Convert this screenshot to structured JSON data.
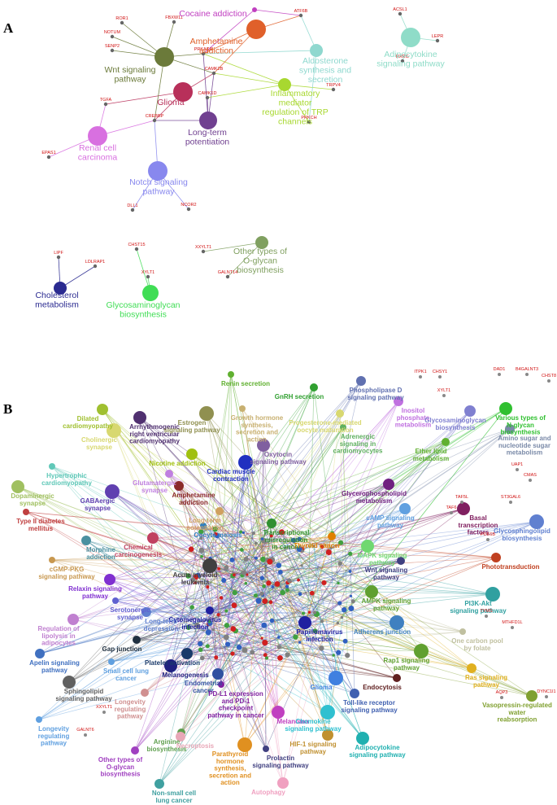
{
  "panel_a": {
    "label": "A",
    "pathways": [
      {
        "label": "Cocaine addiction",
        "color": "#c03fc0"
      },
      {
        "label": "Amphetamine\naddiction",
        "color": "#e0602a"
      },
      {
        "label": "Wnt signaling\npathway",
        "color": "#6b7a3a"
      },
      {
        "label": "Aldosterone\nsynthesis and\nsecretion",
        "color": "#8fd8cf"
      },
      {
        "label": "Adipocytokine\nsignaling pathway",
        "color": "#8fdcc8"
      },
      {
        "label": "Glioma",
        "color": "#b8305a"
      },
      {
        "label": "Inflammatory\nmediator\nregulation of TRP\nchannels",
        "color": "#a8d830"
      },
      {
        "label": "Long-term\npotentiation",
        "color": "#704090"
      },
      {
        "label": "Renal cell\ncarcinoma",
        "color": "#d870e0"
      },
      {
        "label": "Notch signaling\npathway",
        "color": "#8888ee"
      },
      {
        "label": "Cholesterol\nmetabolism",
        "color": "#2a2a90"
      },
      {
        "label": "Glycosaminoglycan\nbiosynthesis",
        "color": "#40dd55"
      },
      {
        "label": "Other types of\nO-glycan\nbiosynthesis",
        "color": "#80a060"
      }
    ],
    "genes": [
      "ROR1",
      "FBXW11",
      "NOTUM",
      "SENP2",
      "ATF6B",
      "ACSL1",
      "LEPR",
      "RXRG",
      "PRKACA",
      "CAMK2B",
      "CAMK1D",
      "TRPV4",
      "PRKCH",
      "TGFA",
      "CREBBP",
      "EPAS1",
      "DLL1",
      "NCOR2",
      "LIPF",
      "LDLRAP1",
      "CHST15",
      "XYLT1",
      "XXYLT1",
      "GALNT14"
    ]
  },
  "panel_b": {
    "label": "B",
    "pathways": [
      {
        "label": "Renin secretion",
        "color": "#60b030"
      },
      {
        "label": "GnRH secretion",
        "color": "#30a030"
      },
      {
        "label": "Phospholipase D\nsignaling pathway",
        "color": "#6070b0"
      },
      {
        "label": "Dilated\ncardiomyopathy",
        "color": "#a0c030"
      },
      {
        "label": "Arrhythmogenic\nright ventricular\ncardiomyopathy",
        "color": "#503070"
      },
      {
        "label": "Estrogen\nsignaling pathway",
        "color": "#909050"
      },
      {
        "label": "Growth hormone\nsynthesis,\nsecretion and\naction",
        "color": "#c8b070"
      },
      {
        "label": "Progesterone-mediated\noocyte maturation",
        "color": "#d8d870"
      },
      {
        "label": "Inositol\nphosphate\nmetabolism",
        "color": "#c070e0"
      },
      {
        "label": "Glycosaminoglycan\nbiosynthesis",
        "color": "#8080d0"
      },
      {
        "label": "Various types of\nN-glycan\nbiosynthesis",
        "color": "#30c030"
      },
      {
        "label": "Cholinergic\nsynapse",
        "color": "#d8d870"
      },
      {
        "label": "Adrenergic\nsignaling in\ncardiomyocytes",
        "color": "#60b060"
      },
      {
        "label": "Ether lipid\nmetabolism",
        "color": "#60b030"
      },
      {
        "label": "Amino sugar and\nnucleotide sugar\nmetabolism",
        "color": "#7a8aa8"
      },
      {
        "label": "Nicotine addiction",
        "color": "#a0c010"
      },
      {
        "label": "Oxytocin\nsignaling pathway",
        "color": "#8060a0"
      },
      {
        "label": "Cardiac muscle\ncontraction",
        "color": "#2030c0"
      },
      {
        "label": "Hypertrophic\ncardiomyopathy",
        "color": "#60c8b8"
      },
      {
        "label": "Glutamatergic\nsynapse",
        "color": "#c080e0"
      },
      {
        "label": "Amphetamine\naddiction",
        "color": "#8a2a2a"
      },
      {
        "label": "Glycerophospholipid\nmetabolism",
        "color": "#702080"
      },
      {
        "label": "Dopaminergic\nsynapse",
        "color": "#a0c060"
      },
      {
        "label": "GABAergic\nsynapse",
        "color": "#6040b0"
      },
      {
        "label": "Type II diabetes\nmellitus",
        "color": "#c04040"
      },
      {
        "label": "Long-term\npotentiation",
        "color": "#d0a060"
      },
      {
        "label": "Transcriptional\nmisregulation\nin cancer",
        "color": "#309030"
      },
      {
        "label": "cAMP signaling\npathway",
        "color": "#60a0e0"
      },
      {
        "label": "Basal\ntranscription\nfactors",
        "color": "#802060"
      },
      {
        "label": "Glycosphingolipid\nbiosynthesis",
        "color": "#6080d0"
      },
      {
        "label": "Oocyte meiosis",
        "color": "#3080c0"
      },
      {
        "label": "Thyroid cancer",
        "color": "#e08000"
      },
      {
        "label": "Morphine\naddiction",
        "color": "#4a90a0"
      },
      {
        "label": "Chemical\ncarcinogenesis",
        "color": "#c04060"
      },
      {
        "label": "MAPK signaling\npathway",
        "color": "#70d870"
      },
      {
        "label": "Acute myeloid\nleukemia",
        "color": "#404040"
      },
      {
        "label": "cGMP-PKG\nsignaling pathway",
        "color": "#c89850"
      },
      {
        "label": "Wnt signaling\npathway",
        "color": "#404080"
      },
      {
        "label": "Phototransduction",
        "color": "#c04020"
      },
      {
        "label": "Relaxin signaling\npathway",
        "color": "#8030d0"
      },
      {
        "label": "AMPK signaling\npathway",
        "color": "#60a030"
      },
      {
        "label": "PI3K-Akt\nsignaling pathway",
        "color": "#30a0a0"
      },
      {
        "label": "Serotonergic\nsynapse",
        "color": "#6060d0"
      },
      {
        "label": "Cytomegalovirus\ninfection",
        "color": "#2020a0"
      },
      {
        "label": "Long-term\ndepression",
        "color": "#6080d0"
      },
      {
        "label": "Regulation of\nlipolysis in\nadipocytes",
        "color": "#c080d0"
      },
      {
        "label": "Papillomavirus\ninfection",
        "color": "#2020a0"
      },
      {
        "label": "Adherens junction",
        "color": "#4080c0"
      },
      {
        "label": "One carbon pool\nby folate",
        "color": "#c0c0a0"
      },
      {
        "label": "Gap junction",
        "color": "#203040"
      },
      {
        "label": "Apelin signaling\npathway",
        "color": "#4070c0"
      },
      {
        "label": "Platelet activation",
        "color": "#1a3a6a"
      },
      {
        "label": "Melanogenesis",
        "color": "#202080"
      },
      {
        "label": "Rap1 signaling\npathway",
        "color": "#60a030"
      },
      {
        "label": "Small cell lung\ncancer",
        "color": "#60a0e0"
      },
      {
        "label": "Endocytosis",
        "color": "#602020"
      },
      {
        "label": "Ras signaling\npathway",
        "color": "#e0b020"
      },
      {
        "label": "Endometrial\ncancer",
        "color": "#3050a0"
      },
      {
        "label": "Sphingolipid\nsignaling pathway",
        "color": "#606060"
      },
      {
        "label": "Glioma",
        "color": "#4080e0"
      },
      {
        "label": "PD-L1 expression\nand PD-1\ncheckpoint\npathway in cancer",
        "color": "#8020a0"
      },
      {
        "label": "Longevity\nregulating\npathway",
        "color": "#d09090"
      },
      {
        "label": "Toll-like receptor\nsignaling pathway",
        "color": "#4060b0"
      },
      {
        "label": "Vasopressin-regulated\nwater\nreabsorption",
        "color": "#80a030"
      },
      {
        "label": "Melanoma",
        "color": "#c040c0"
      },
      {
        "label": "Chemokine\nsignaling pathway",
        "color": "#30c0d0"
      },
      {
        "label": "Longevity\nregulating\npathway",
        "color": "#60a0e0"
      },
      {
        "label": "Arginine\nbiosynthesis",
        "color": "#60a050"
      },
      {
        "label": "Necroptosis",
        "color": "#e8a8b8"
      },
      {
        "label": "HIF-1 signaling\npathway",
        "color": "#c09030"
      },
      {
        "label": "Adipocytokine\nsignaling pathway",
        "color": "#20b0b0"
      },
      {
        "label": "Parathyroid\nhormone\nsynthesis,\nsecretion and\naction",
        "color": "#e09020"
      },
      {
        "label": "Prolactin\nsignaling pathway",
        "color": "#404080"
      },
      {
        "label": "Other types of\nO-glycan\nbiosynthesis",
        "color": "#a040c0"
      },
      {
        "label": "Non-small cell\nlung cancer",
        "color": "#40a0a0"
      },
      {
        "label": "Autophagy",
        "color": "#f0a0c0"
      }
    ],
    "genes": [
      "ITPK1",
      "CHSY1",
      "DAD1",
      "B4GALNT3",
      "CHST8",
      "XYLT1",
      "UAP1",
      "CMAS",
      "ST3GAL6",
      "TAF5L",
      "TAF6",
      "PDE6B",
      "TYMS",
      "MTHFD1L",
      "AQP3",
      "DYNC1I1",
      "XXYLT1",
      "GALNT6"
    ]
  }
}
